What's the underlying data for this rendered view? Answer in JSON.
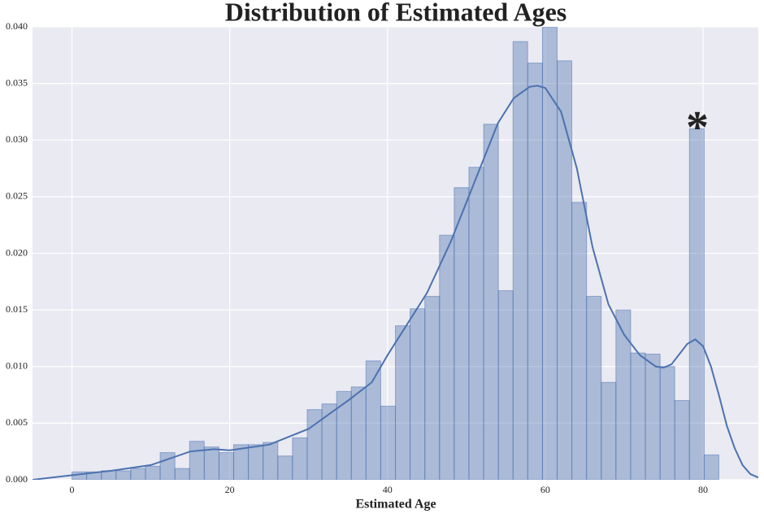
{
  "chart_data": {
    "type": "histogram",
    "title": "Distribution of Estimated Ages",
    "xlabel": "Estimated Age",
    "bins": [
      0,
      1.86,
      3.73,
      5.59,
      7.45,
      9.32,
      11.18,
      13.05,
      14.91,
      16.77,
      18.64,
      20.5,
      22.36,
      24.23,
      26.09,
      27.95,
      29.82,
      31.68,
      33.55,
      35.41,
      37.27,
      39.14,
      41,
      42.86,
      44.73,
      46.59,
      48.45,
      50.32,
      52.18,
      54.05,
      55.91,
      57.77,
      59.64,
      61.5,
      63.36,
      65.23,
      67.09,
      68.95,
      70.82,
      72.68,
      74.55,
      76.41,
      78.27,
      80.14,
      82
    ],
    "values": [
      0.0007,
      0.0007,
      0.0008,
      0.0008,
      0.001,
      0.0012,
      0.0024,
      0.001,
      0.0034,
      0.0029,
      0.0024,
      0.0031,
      0.0031,
      0.0033,
      0.0021,
      0.0037,
      0.0062,
      0.0067,
      0.0078,
      0.0082,
      0.0105,
      0.0065,
      0.0136,
      0.0151,
      0.0162,
      0.0216,
      0.0258,
      0.0276,
      0.0314,
      0.0167,
      0.0387,
      0.0368,
      0.04,
      0.037,
      0.0245,
      0.0162,
      0.0086,
      0.015,
      0.0112,
      0.0111,
      0.01,
      0.007,
      0.031,
      0.0022
    ],
    "color": "#4c72b0",
    "kde": {
      "color": "#4c72b0",
      "x": [
        -5,
        0,
        5,
        10,
        15,
        18,
        20,
        25,
        30,
        35,
        38,
        40,
        42,
        45,
        48,
        50,
        52,
        54,
        56,
        58,
        59,
        60,
        62,
        64,
        66,
        68,
        70,
        72,
        74,
        75,
        76,
        78,
        79,
        80,
        81,
        82,
        83,
        84,
        85,
        86,
        87
      ],
      "values": [
        0,
        0.0004,
        0.0008,
        0.0013,
        0.0025,
        0.0027,
        0.0026,
        0.0031,
        0.0045,
        0.007,
        0.0086,
        0.011,
        0.0132,
        0.0165,
        0.021,
        0.0245,
        0.028,
        0.0315,
        0.0337,
        0.0347,
        0.0348,
        0.0346,
        0.0325,
        0.0275,
        0.0205,
        0.0155,
        0.0128,
        0.011,
        0.01,
        0.0099,
        0.0102,
        0.012,
        0.0124,
        0.0118,
        0.01,
        0.0075,
        0.0048,
        0.0028,
        0.0013,
        0.0005,
        0.0002
      ]
    },
    "annotation": {
      "text": "*",
      "color": "#b22222"
    },
    "xlim": [
      -5,
      87
    ],
    "ylim": [
      0,
      0.04
    ],
    "xticks": [
      0,
      20,
      40,
      60,
      80
    ],
    "yticks": [
      {
        "value": 0,
        "label": "0.000"
      },
      {
        "value": 0.005,
        "label": "0.005"
      },
      {
        "value": 0.01,
        "label": "0.010"
      },
      {
        "value": 0.015,
        "label": "0.015"
      },
      {
        "value": 0.02,
        "label": "0.020"
      },
      {
        "value": 0.025,
        "label": "0.025"
      },
      {
        "value": 0.03,
        "label": "0.030"
      },
      {
        "value": 0.035,
        "label": "0.035"
      },
      {
        "value": 0.04,
        "label": "0.040"
      }
    ],
    "grid": true,
    "background": "#eaeaf2"
  }
}
